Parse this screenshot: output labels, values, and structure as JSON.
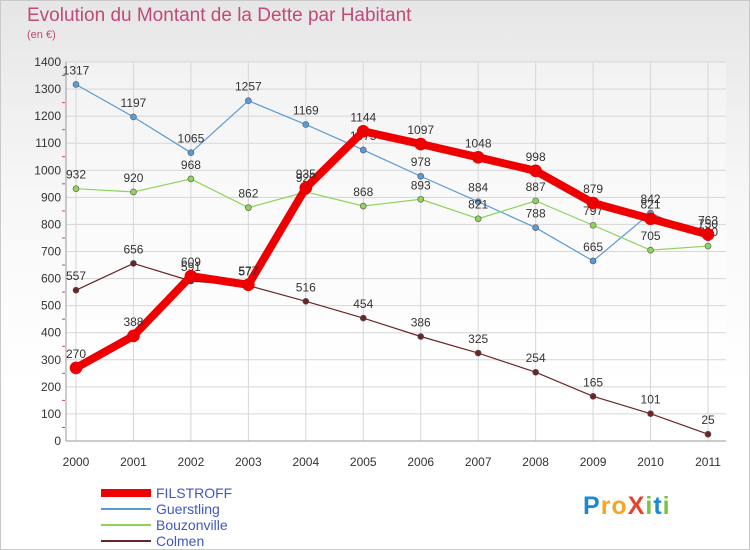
{
  "title": "Evolution du Montant de la Dette par Habitant",
  "subtitle": "(en €)",
  "logo": {
    "text": "ProXiti",
    "letters": [
      "P",
      "r",
      "o",
      "X",
      "i",
      "t",
      "i"
    ],
    "colors": [
      "#1e88d0",
      "#f5a623",
      "#f5a623",
      "#e8412e",
      "#7cc242",
      "#1e88d0",
      "#7cc242"
    ]
  },
  "chart_data": {
    "type": "line",
    "title": "Evolution du Montant de la Dette par Habitant",
    "ylabel": "(en €)",
    "xlabel": "",
    "x": [
      "2000",
      "2001",
      "2002",
      "2003",
      "2004",
      "2005",
      "2006",
      "2007",
      "2008",
      "2009",
      "2010",
      "2011"
    ],
    "ylim": [
      0,
      1400
    ],
    "yticks": [
      0,
      100,
      200,
      300,
      400,
      500,
      600,
      700,
      800,
      900,
      1000,
      1100,
      1200,
      1300,
      1400
    ],
    "grid": true,
    "legend_position": "bottom-left",
    "series": [
      {
        "name": "Guerstling",
        "color": "#5b9bd5",
        "values": [
          1317,
          1197,
          1065,
          1257,
          1169,
          1075,
          978,
          884,
          788,
          665,
          842,
          750
        ]
      },
      {
        "name": "Bouzonville",
        "color": "#8fd35a",
        "values": [
          932,
          920,
          968,
          862,
          920,
          868,
          893,
          821,
          887,
          797,
          705,
          720
        ]
      },
      {
        "name": "Colmen",
        "color": "#6b2525",
        "values": [
          557,
          656,
          591,
          574,
          516,
          454,
          386,
          325,
          254,
          165,
          101,
          25
        ]
      },
      {
        "name": "FILSTROFF",
        "color": "#ee0000",
        "values": [
          270,
          388,
          609,
          577,
          935,
          1144,
          1097,
          1048,
          998,
          879,
          821,
          763
        ]
      }
    ],
    "legend_order": [
      "FILSTROFF",
      "Guerstling",
      "Bouzonville",
      "Colmen"
    ]
  }
}
